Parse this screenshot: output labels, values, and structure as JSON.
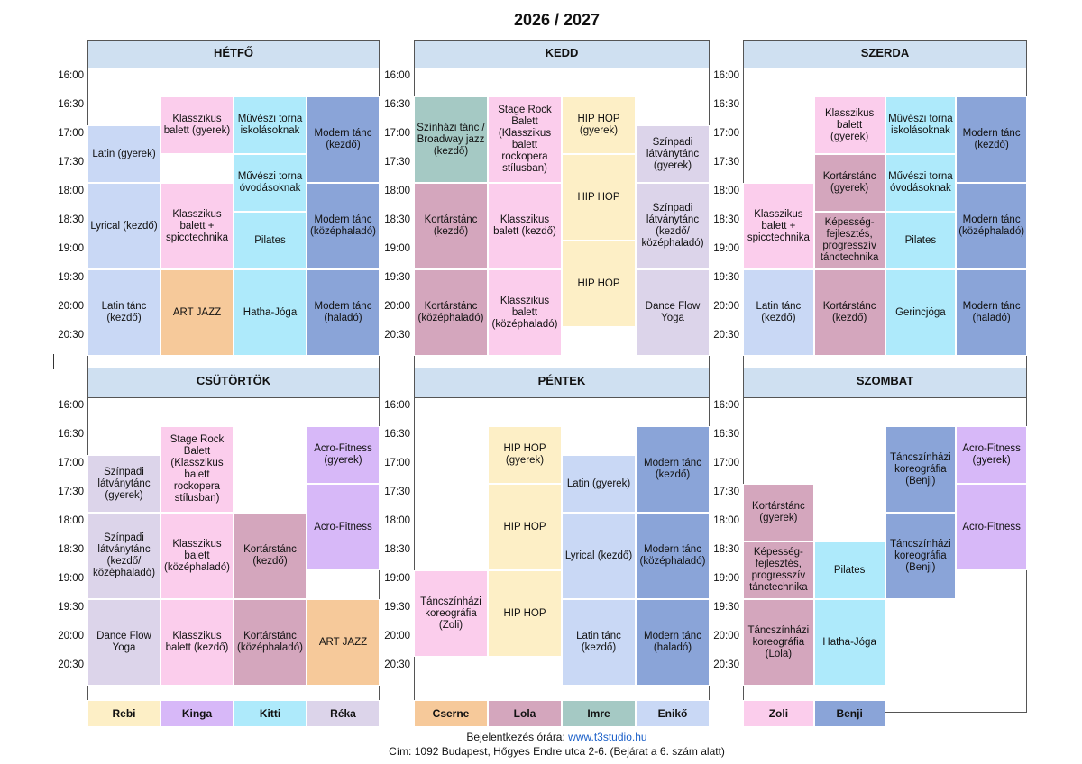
{
  "title": "2026 / 2027",
  "times": [
    "16:00",
    "16:30",
    "17:00",
    "17:30",
    "18:00",
    "18:30",
    "19:00",
    "19:30",
    "20:00",
    "20:30"
  ],
  "days": [
    {
      "name": "HÉTFŐ",
      "columns": [
        [
          {
            "text": "Latin (gyerek)",
            "start": "17:00",
            "end": "18:00",
            "color": "#c9d8f5"
          },
          {
            "text": "Lyrical (kezdő)",
            "start": "18:00",
            "end": "19:30",
            "color": "#c9d8f5"
          },
          {
            "text": "Latin tánc (kezdő)",
            "start": "19:30",
            "end": "21:00",
            "color": "#c9d8f5"
          }
        ],
        [
          {
            "text": "Klasszikus balett (gyerek)",
            "start": "16:30",
            "end": "17:30",
            "color": "#fbcdec"
          },
          {
            "text": "Klasszikus balett + spicctechnika",
            "start": "18:00",
            "end": "19:30",
            "color": "#fbcdec"
          },
          {
            "text": "ART JAZZ",
            "start": "19:30",
            "end": "21:00",
            "color": "#f6c99a"
          }
        ],
        [
          {
            "text": "Művészi torna iskolásoknak",
            "start": "16:30",
            "end": "17:30",
            "color": "#aeeafb"
          },
          {
            "text": "Művészi torna óvodásoknak",
            "start": "17:30",
            "end": "18:30",
            "color": "#aeeafb"
          },
          {
            "text": "Pilates",
            "start": "18:30",
            "end": "19:30",
            "color": "#aeeafb"
          },
          {
            "text": "Hatha-Jóga",
            "start": "19:30",
            "end": "21:00",
            "color": "#aeeafb"
          }
        ],
        [
          {
            "text": "Modern tánc (kezdő)",
            "start": "16:30",
            "end": "18:00",
            "color": "#8aa4d8"
          },
          {
            "text": "Modern tánc (középhaladó)",
            "start": "18:00",
            "end": "19:30",
            "color": "#8aa4d8"
          },
          {
            "text": "Modern tánc (haladó)",
            "start": "19:30",
            "end": "21:00",
            "color": "#8aa4d8"
          }
        ]
      ]
    },
    {
      "name": "KEDD",
      "columns": [
        [
          {
            "text": "Színházi tánc / Broadway jazz (kezdő)",
            "start": "16:30",
            "end": "18:00",
            "color": "#a5c9c4"
          },
          {
            "text": "Kortárstánc (kezdő)",
            "start": "18:00",
            "end": "19:30",
            "color": "#d4a6bd"
          },
          {
            "text": "Kortárstánc (középhaladó)",
            "start": "19:30",
            "end": "21:00",
            "color": "#d4a6bd"
          }
        ],
        [
          {
            "text": "Stage Rock Balett (Klasszikus balett rockopera stílusban)",
            "start": "16:30",
            "end": "18:00",
            "color": "#fbcdec"
          },
          {
            "text": "Klasszikus balett (kezdő)",
            "start": "18:00",
            "end": "19:30",
            "color": "#fbcdec"
          },
          {
            "text": "Klasszikus balett (középhaladó)",
            "start": "19:30",
            "end": "21:00",
            "color": "#fbcdec"
          }
        ],
        [
          {
            "text": "HIP HOP (gyerek)",
            "start": "16:30",
            "end": "17:30",
            "color": "#fdefc6"
          },
          {
            "text": "HIP HOP",
            "start": "17:30",
            "end": "19:00",
            "color": "#fdefc6"
          },
          {
            "text": "HIP HOP",
            "start": "19:00",
            "end": "20:30",
            "color": "#fdefc6"
          }
        ],
        [
          {
            "text": "Színpadi látványtánc (gyerek)",
            "start": "17:00",
            "end": "18:00",
            "color": "#dcd4ea"
          },
          {
            "text": "Színpadi látványtánc (kezdő/ középhaladó)",
            "start": "18:00",
            "end": "19:30",
            "color": "#dcd4ea"
          },
          {
            "text": "Dance Flow Yoga",
            "start": "19:30",
            "end": "21:00",
            "color": "#dcd4ea"
          }
        ]
      ]
    },
    {
      "name": "SZERDA",
      "columns": [
        [
          {
            "text": "Klasszikus balett + spicctechnika",
            "start": "18:00",
            "end": "19:30",
            "color": "#fbcdec"
          },
          {
            "text": "Latin tánc (kezdő)",
            "start": "19:30",
            "end": "21:00",
            "color": "#c9d8f5"
          }
        ],
        [
          {
            "text": "Klasszikus balett (gyerek)",
            "start": "16:30",
            "end": "17:30",
            "color": "#fbcdec"
          },
          {
            "text": "Kortárstánc (gyerek)",
            "start": "17:30",
            "end": "18:30",
            "color": "#d4a6bd"
          },
          {
            "text": "Képesség-fejlesztés, progresszív tánctechnika",
            "start": "18:30",
            "end": "19:30",
            "color": "#d4a6bd"
          },
          {
            "text": "Kortárstánc (kezdő)",
            "start": "19:30",
            "end": "21:00",
            "color": "#d4a6bd"
          }
        ],
        [
          {
            "text": "Művészi torna iskolásoknak",
            "start": "16:30",
            "end": "17:30",
            "color": "#aeeafb"
          },
          {
            "text": "Művészi torna óvodásoknak",
            "start": "17:30",
            "end": "18:30",
            "color": "#aeeafb"
          },
          {
            "text": "Pilates",
            "start": "18:30",
            "end": "19:30",
            "color": "#aeeafb"
          },
          {
            "text": "Gerincjóga",
            "start": "19:30",
            "end": "21:00",
            "color": "#aeeafb"
          }
        ],
        [
          {
            "text": "Modern tánc (kezdő)",
            "start": "16:30",
            "end": "18:00",
            "color": "#8aa4d8"
          },
          {
            "text": "Modern tánc (középhaladó)",
            "start": "18:00",
            "end": "19:30",
            "color": "#8aa4d8"
          },
          {
            "text": "Modern tánc (haladó)",
            "start": "19:30",
            "end": "21:00",
            "color": "#8aa4d8"
          }
        ]
      ]
    },
    {
      "name": "CSÜTÖRTÖK",
      "columns": [
        [
          {
            "text": "Színpadi látványtánc (gyerek)",
            "start": "17:00",
            "end": "18:00",
            "color": "#dcd4ea"
          },
          {
            "text": "Színpadi látványtánc (kezdő/ középhaladó)",
            "start": "18:00",
            "end": "19:30",
            "color": "#dcd4ea"
          },
          {
            "text": "Dance Flow Yoga",
            "start": "19:30",
            "end": "21:00",
            "color": "#dcd4ea"
          }
        ],
        [
          {
            "text": "Stage Rock Balett (Klasszikus balett rockopera stílusban)",
            "start": "16:30",
            "end": "18:00",
            "color": "#fbcdec"
          },
          {
            "text": "Klasszikus balett (középhaladó)",
            "start": "18:00",
            "end": "19:30",
            "color": "#fbcdec"
          },
          {
            "text": "Klasszikus balett (kezdő)",
            "start": "19:30",
            "end": "21:00",
            "color": "#fbcdec"
          }
        ],
        [
          {
            "text": "Kortárstánc (kezdő)",
            "start": "18:00",
            "end": "19:30",
            "color": "#d4a6bd"
          },
          {
            "text": "Kortárstánc (középhaladó)",
            "start": "19:30",
            "end": "21:00",
            "color": "#d4a6bd"
          }
        ],
        [
          {
            "text": "Acro-Fitness (gyerek)",
            "start": "16:30",
            "end": "17:30",
            "color": "#d7b8f8"
          },
          {
            "text": "Acro-Fitness",
            "start": "17:30",
            "end": "19:00",
            "color": "#d7b8f8"
          },
          {
            "text": "ART JAZZ",
            "start": "19:30",
            "end": "21:00",
            "color": "#f6c99a"
          }
        ]
      ]
    },
    {
      "name": "PÉNTEK",
      "columns": [
        [
          {
            "text": "Táncszínházi koreográfia (Zoli)",
            "start": "19:00",
            "end": "20:30",
            "color": "#fbcdec"
          }
        ],
        [
          {
            "text": "HIP HOP (gyerek)",
            "start": "16:30",
            "end": "17:30",
            "color": "#fdefc6"
          },
          {
            "text": "HIP HOP",
            "start": "17:30",
            "end": "19:00",
            "color": "#fdefc6"
          },
          {
            "text": "HIP HOP",
            "start": "19:00",
            "end": "20:30",
            "color": "#fdefc6"
          }
        ],
        [
          {
            "text": "Latin (gyerek)",
            "start": "17:00",
            "end": "18:00",
            "color": "#c9d8f5"
          },
          {
            "text": "Lyrical (kezdő)",
            "start": "18:00",
            "end": "19:30",
            "color": "#c9d8f5"
          },
          {
            "text": "Latin tánc (kezdő)",
            "start": "19:30",
            "end": "21:00",
            "color": "#c9d8f5"
          }
        ],
        [
          {
            "text": "Modern tánc (kezdő)",
            "start": "16:30",
            "end": "18:00",
            "color": "#8aa4d8"
          },
          {
            "text": "Modern tánc (középhaladó)",
            "start": "18:00",
            "end": "19:30",
            "color": "#8aa4d8"
          },
          {
            "text": "Modern tánc (haladó)",
            "start": "19:30",
            "end": "21:00",
            "color": "#8aa4d8"
          }
        ]
      ]
    },
    {
      "name": "SZOMBAT",
      "columns": [
        [
          {
            "text": "Kortárstánc (gyerek)",
            "start": "17:30",
            "end": "18:30",
            "color": "#d4a6bd"
          },
          {
            "text": "Képesség-fejlesztés, progresszív tánctechnika",
            "start": "18:30",
            "end": "19:30",
            "color": "#d4a6bd"
          },
          {
            "text": "Táncszínházi koreográfia (Lola)",
            "start": "19:30",
            "end": "21:00",
            "color": "#d4a6bd"
          }
        ],
        [
          {
            "text": "Pilates",
            "start": "18:30",
            "end": "19:30",
            "color": "#aeeafb"
          },
          {
            "text": "Hatha-Jóga",
            "start": "19:30",
            "end": "21:00",
            "color": "#aeeafb"
          }
        ],
        [
          {
            "text": "Táncszínházi koreográfia (Benji)",
            "start": "16:30",
            "end": "18:00",
            "color": "#8aa4d8"
          },
          {
            "text": "Táncszínházi koreográfia (Benji)",
            "start": "18:00",
            "end": "19:30",
            "color": "#8aa4d8"
          }
        ],
        [
          {
            "text": "Acro-Fitness (gyerek)",
            "start": "16:30",
            "end": "17:30",
            "color": "#d7b8f8"
          },
          {
            "text": "Acro-Fitness",
            "start": "17:30",
            "end": "19:00",
            "color": "#d7b8f8"
          }
        ]
      ]
    }
  ],
  "legend": [
    [
      {
        "name": "Rebi",
        "color": "#fdefc6"
      },
      {
        "name": "Kinga",
        "color": "#d7b8f8"
      },
      {
        "name": "Kitti",
        "color": "#aeeafb"
      },
      {
        "name": "Réka",
        "color": "#dcd4ea"
      }
    ],
    [
      {
        "name": "Cserne",
        "color": "#f6c99a"
      },
      {
        "name": "Lola",
        "color": "#d4a6bd"
      },
      {
        "name": "Imre",
        "color": "#a5c9c4"
      },
      {
        "name": "Enikő",
        "color": "#c9d8f5"
      }
    ],
    [
      {
        "name": "Zoli",
        "color": "#fbcdec"
      },
      {
        "name": "Benji",
        "color": "#8aa4d8"
      }
    ]
  ],
  "footer": {
    "signup_label": "Bejelentkezés órára:",
    "signup_link": "www.t3studio.hu",
    "address": "Cím: 1092 Budapest, Hőgyes Endre utca 2-6. (Bejárat a 6. szám alatt)"
  }
}
